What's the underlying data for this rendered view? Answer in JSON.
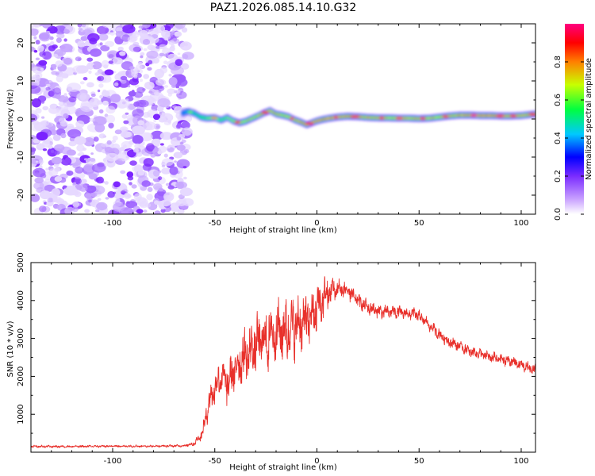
{
  "title": "PAZ1.2026.085.14.10.G32",
  "chart_data": [
    {
      "type": "heatmap",
      "name": "spectrogram",
      "xlabel": "Height of straight line (km)",
      "ylabel": "Frequency (Hz)",
      "xlim": [
        -140,
        107
      ],
      "ylim": [
        -25,
        25
      ],
      "xticks": [
        -100,
        -50,
        0,
        50,
        100
      ],
      "yticks": [
        -20,
        -10,
        0,
        10,
        20
      ],
      "colorbar": {
        "label": "Normalized spectral amplitude",
        "range": [
          0,
          1
        ],
        "ticks": [
          "0.0",
          "0.2",
          "0.4",
          "0.6",
          "0.8"
        ],
        "colors": [
          "#ffffff",
          "#a060ff",
          "#0000ff",
          "#00e0ff",
          "#00ff00",
          "#ffff00",
          "#ff0000",
          "#ff0080"
        ]
      },
      "noise_region": {
        "x_from": -140,
        "x_to": -63,
        "amplitude": 0.15
      },
      "ridge": {
        "x": [
          -66,
          -63,
          -60,
          -57,
          -54,
          -50,
          -47,
          -44,
          -41,
          -38,
          -35,
          -32,
          -29,
          -26,
          -23,
          -20,
          -17,
          -14,
          -11,
          -8,
          -5,
          -2,
          0,
          3,
          6,
          10,
          15,
          20,
          25,
          30,
          35,
          40,
          45,
          50,
          55,
          60,
          65,
          70,
          75,
          80,
          85,
          90,
          95,
          100,
          105,
          107
        ],
        "freq": [
          1.5,
          2.0,
          1.5,
          0.5,
          0.2,
          0.3,
          -0.3,
          0.4,
          -0.5,
          -1.0,
          -0.6,
          0.1,
          0.8,
          1.6,
          2.2,
          1.3,
          1.0,
          0.6,
          -0.2,
          -0.8,
          -1.5,
          -0.9,
          -0.5,
          -0.1,
          0.2,
          0.5,
          0.7,
          0.6,
          0.4,
          0.3,
          0.3,
          0.2,
          0.2,
          0.1,
          0.2,
          0.5,
          0.8,
          1.0,
          1.0,
          0.9,
          0.9,
          0.8,
          0.8,
          0.9,
          1.2,
          1.3
        ],
        "amplitude": [
          0.35,
          0.45,
          0.5,
          0.55,
          0.6,
          0.65,
          0.6,
          0.62,
          0.65,
          0.7,
          0.72,
          0.7,
          0.75,
          0.8,
          0.78,
          0.75,
          0.7,
          0.72,
          0.75,
          0.8,
          0.85,
          0.82,
          0.85,
          0.85,
          0.85,
          0.82,
          0.8,
          0.8,
          0.78,
          0.75,
          0.72,
          0.72,
          0.75,
          0.78,
          0.75,
          0.72,
          0.75,
          0.8,
          0.82,
          0.85,
          0.85,
          0.82,
          0.8,
          0.8,
          0.78,
          0.76
        ]
      }
    },
    {
      "type": "line",
      "name": "snr",
      "xlabel": "Height of straight line (km)",
      "ylabel": "SNR (10 * v/v)",
      "xlim": [
        -140,
        107
      ],
      "ylim": [
        0,
        5000
      ],
      "xticks": [
        -100,
        -50,
        0,
        50,
        100
      ],
      "yticks": [
        1000,
        2000,
        3000,
        4000,
        5000
      ],
      "color": "#e8302b",
      "x": [
        -140,
        -120,
        -100,
        -80,
        -65,
        -60,
        -56,
        -53,
        -50,
        -47,
        -44,
        -40,
        -36,
        -32,
        -28,
        -24,
        -20,
        -16,
        -12,
        -8,
        -4,
        0,
        4,
        8,
        12,
        16,
        20,
        24,
        28,
        32,
        36,
        40,
        44,
        48,
        52,
        56,
        60,
        65,
        70,
        75,
        80,
        85,
        90,
        95,
        100,
        105,
        107
      ],
      "y": [
        150,
        150,
        160,
        160,
        170,
        230,
        500,
        1300,
        1700,
        2000,
        1800,
        2200,
        2500,
        2700,
        2900,
        3000,
        3200,
        3200,
        3300,
        3400,
        3500,
        3800,
        4100,
        4300,
        4300,
        4200,
        4000,
        3850,
        3750,
        3700,
        3700,
        3700,
        3650,
        3650,
        3500,
        3300,
        3100,
        2900,
        2800,
        2650,
        2600,
        2500,
        2450,
        2400,
        2300,
        2200,
        2200
      ],
      "noise_amplitude": [
        30,
        30,
        30,
        30,
        30,
        60,
        150,
        350,
        450,
        500,
        500,
        550,
        650,
        700,
        750,
        800,
        850,
        800,
        800,
        750,
        700,
        650,
        500,
        350,
        250,
        220,
        200,
        180,
        180,
        170,
        160,
        150,
        150,
        150,
        150,
        150,
        150,
        150,
        140,
        140,
        140,
        140,
        140,
        140,
        140,
        140,
        140
      ]
    }
  ]
}
